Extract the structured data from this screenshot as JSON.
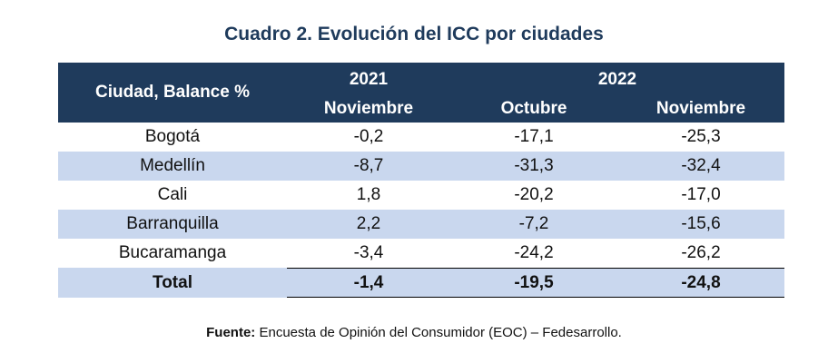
{
  "title": "Cuadro 2. Evolución del ICC por ciudades",
  "header": {
    "city_col": "Ciudad, Balance %",
    "year_2021": "2021",
    "year_2022": "2022",
    "month_2021_nov": "Noviembre",
    "month_2022_oct": "Octubre",
    "month_2022_nov": "Noviembre"
  },
  "rows": [
    {
      "city": "Bogotá",
      "nov2021": "-0,2",
      "oct2022": "-17,1",
      "nov2022": "-25,3"
    },
    {
      "city": "Medellín",
      "nov2021": "-8,7",
      "oct2022": "-31,3",
      "nov2022": "-32,4"
    },
    {
      "city": "Cali",
      "nov2021": "1,8",
      "oct2022": "-20,2",
      "nov2022": "-17,0"
    },
    {
      "city": "Barranquilla",
      "nov2021": "2,2",
      "oct2022": "-7,2",
      "nov2022": "-15,6"
    },
    {
      "city": "Bucaramanga",
      "nov2021": "-3,4",
      "oct2022": "-24,2",
      "nov2022": "-26,2"
    }
  ],
  "total": {
    "city": "Total",
    "nov2021": "-1,4",
    "oct2022": "-19,5",
    "nov2022": "-24,8"
  },
  "source": {
    "label": "Fuente:",
    "text": " Encuesta de Opinión del Consumidor (EOC) – Fedesarrollo."
  },
  "colors": {
    "header_bg": "#1f3b5c",
    "row_shade": "#c9d7ee",
    "title": "#1f3b5c"
  }
}
